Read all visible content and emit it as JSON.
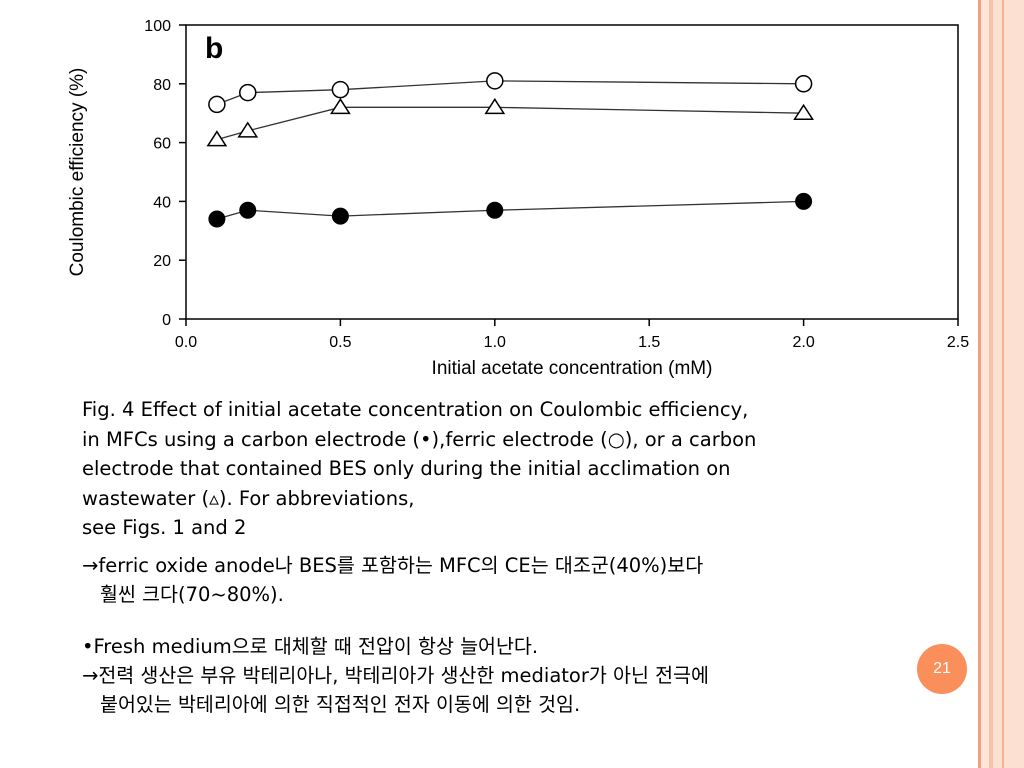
{
  "chart_data": {
    "type": "scatter",
    "panel_label": "b",
    "xlabel": "Initial acetate concentration (mM)",
    "ylabel": "Coulombic efficiency (%)",
    "xlim": [
      0.0,
      2.5
    ],
    "ylim": [
      0,
      100
    ],
    "xticks": [
      "0.0",
      "0.5",
      "1.0",
      "1.5",
      "2.0",
      "2.5"
    ],
    "yticks": [
      "0",
      "20",
      "40",
      "60",
      "80",
      "100"
    ],
    "grid": false,
    "x": [
      0.1,
      0.2,
      0.5,
      1.0,
      2.0
    ],
    "series": [
      {
        "marker": "open-circle",
        "values": [
          73,
          77,
          78,
          81,
          80
        ]
      },
      {
        "marker": "open-triangle",
        "values": [
          61,
          64,
          72,
          72,
          70
        ]
      },
      {
        "marker": "filled-circle",
        "values": [
          34,
          37,
          35,
          37,
          40
        ]
      }
    ]
  },
  "caption": {
    "line1": "Fig. 4 Effect of initial acetate concentration on Coulombic efficiency,",
    "line2": "in MFCs using a carbon electrode (•),ferric electrode (○), or a carbon",
    "line3": "electrode that contained BES only during the initial acclimation on",
    "line4": "wastewater (▵). For abbreviations,",
    "line5": "see Figs. 1 and 2"
  },
  "note1": {
    "line1": "→ferric oxide anode나 BES를 포함하는 MFC의 CE는 대조군(40%)보다",
    "line2": "훨씬 크다(70~80%)."
  },
  "note2": {
    "line1": "•Fresh medium으로 대체할 때 전압이 항상 늘어난다.",
    "line2": "→전력 생산은 부유 박테리아나, 박테리아가 생산한 mediator가 아닌 전극에",
    "line3": "붙어있는 박테리아에 의한 직접적인 전자 이동에 의한 것임."
  },
  "slide_number": "21",
  "colors": {
    "accent_orange": "#fa8f5b",
    "stripe_light": "#fde4d8",
    "stripe_mid": "#f8c2a8",
    "stripe_dark": "#f2a07e"
  }
}
